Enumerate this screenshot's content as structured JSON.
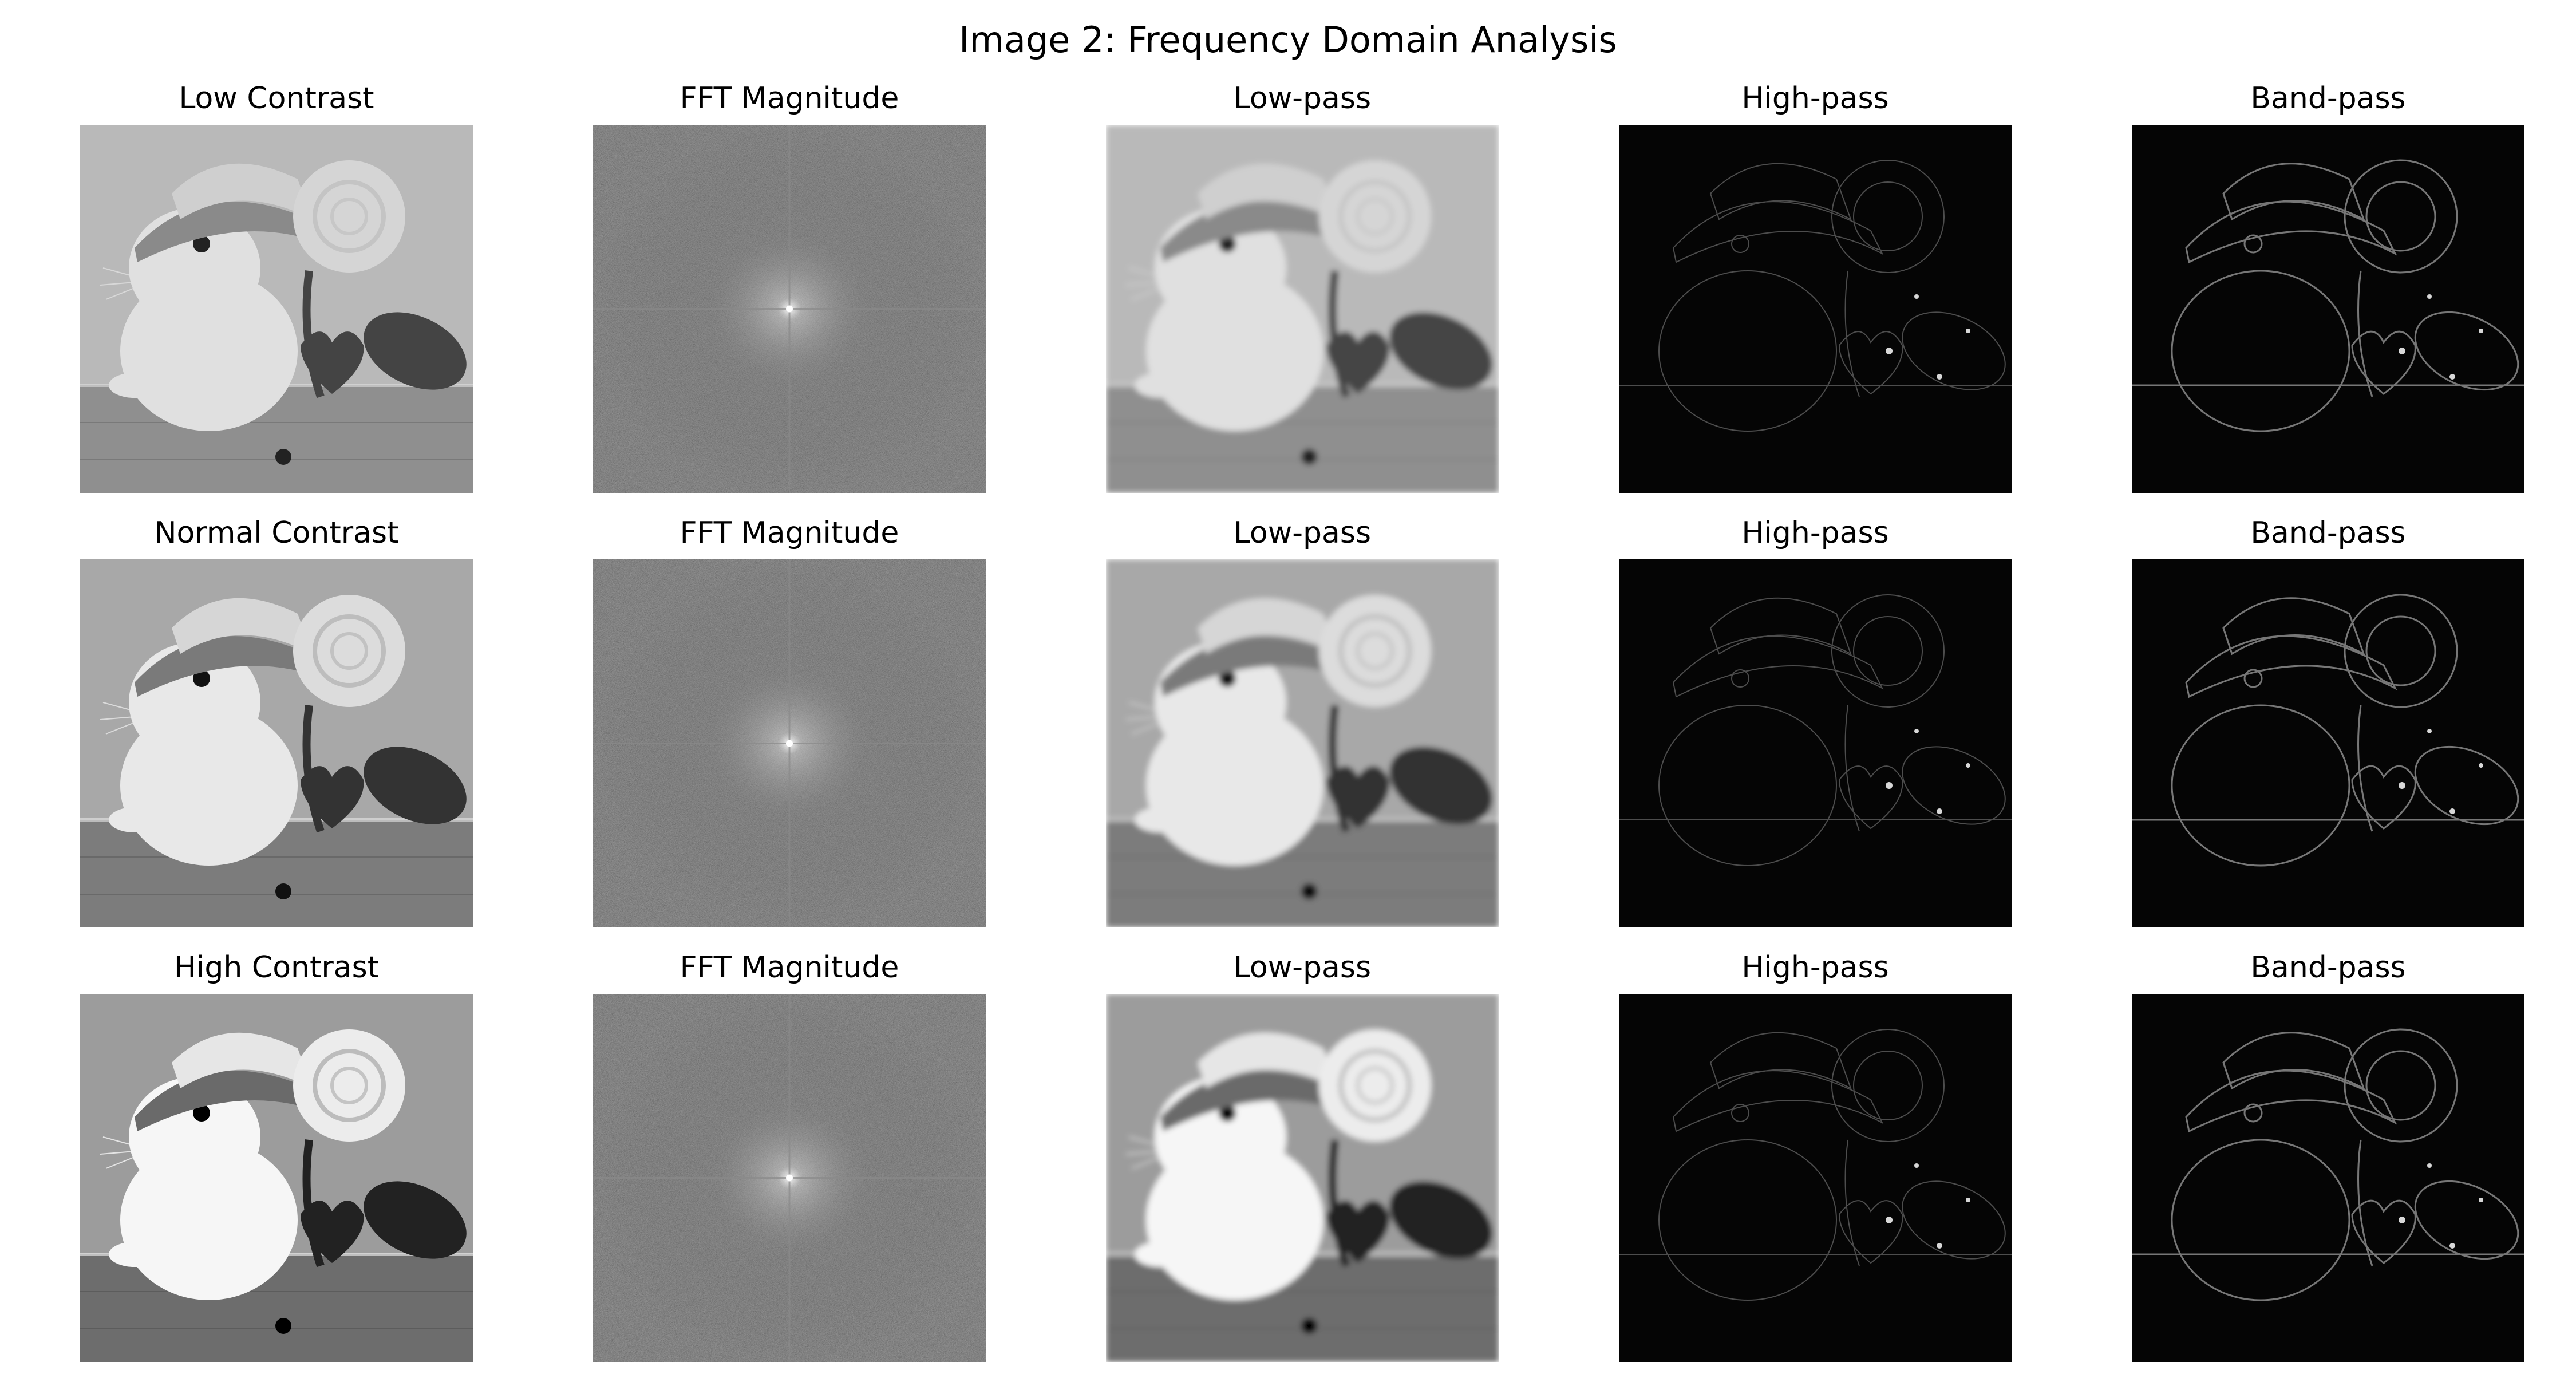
{
  "figure": {
    "title": "Image 2: Frequency Domain Analysis"
  },
  "rows": [
    {
      "label": "low-contrast",
      "panels": [
        {
          "kind": "spatial",
          "title": "Low Contrast"
        },
        {
          "kind": "fft",
          "title": "FFT Magnitude"
        },
        {
          "kind": "lowpass",
          "title": "Low-pass"
        },
        {
          "kind": "highpass",
          "title": "High-pass"
        },
        {
          "kind": "bandpass",
          "title": "Band-pass"
        }
      ]
    },
    {
      "label": "normal-contrast",
      "panels": [
        {
          "kind": "spatial",
          "title": "Normal Contrast"
        },
        {
          "kind": "fft",
          "title": "FFT Magnitude"
        },
        {
          "kind": "lowpass",
          "title": "Low-pass"
        },
        {
          "kind": "highpass",
          "title": "High-pass"
        },
        {
          "kind": "bandpass",
          "title": "Band-pass"
        }
      ]
    },
    {
      "label": "high-contrast",
      "panels": [
        {
          "kind": "spatial",
          "title": "High Contrast"
        },
        {
          "kind": "fft",
          "title": "FFT Magnitude"
        },
        {
          "kind": "lowpass",
          "title": "Low-pass"
        },
        {
          "kind": "highpass",
          "title": "High-pass"
        },
        {
          "kind": "bandpass",
          "title": "Band-pass"
        }
      ]
    }
  ]
}
